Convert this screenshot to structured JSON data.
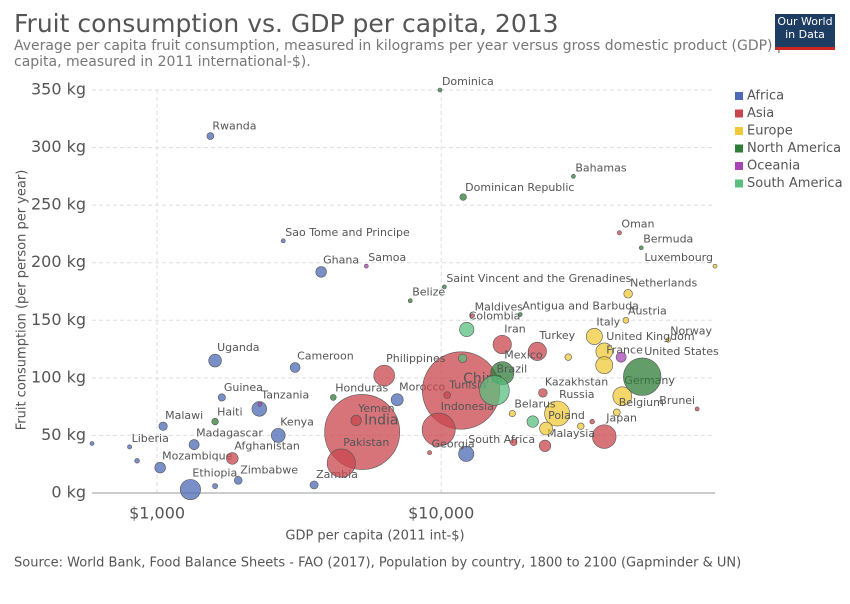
{
  "chart_data": {
    "type": "scatter",
    "title": "Fruit consumption vs. GDP per capita, 2013",
    "subtitle": "Average per capita fruit consumption, measured in kilograms per year versus gross domestic product (GDP) per capita, measured in 2011 international-$).",
    "logo": "Our World in Data",
    "x_label": "GDP per capita (2011 int-$)",
    "y_label": "Fruit consumption (per person per year)",
    "source": "Source: World Bank, Food Balance Sheets - FAO (2017), Population by country, 1800 to 2100 (Gapminder & UN)",
    "log_x": true,
    "grid": true,
    "legend": "right",
    "xlim": [
      590,
      92000
    ],
    "ylim": [
      0,
      350
    ],
    "xticks": [
      {
        "value": 1000,
        "label": "$1,000"
      },
      {
        "value": 10000,
        "label": "$10,000"
      }
    ],
    "yticks": [
      {
        "value": 0,
        "label": "0 kg"
      },
      {
        "value": 50,
        "label": "50 kg"
      },
      {
        "value": 100,
        "label": "100 kg"
      },
      {
        "value": 150,
        "label": "150 kg"
      },
      {
        "value": 200,
        "label": "200 kg"
      },
      {
        "value": 250,
        "label": "250 kg"
      },
      {
        "value": 300,
        "label": "300 kg"
      },
      {
        "value": 350,
        "label": "350 kg"
      }
    ],
    "series": [
      {
        "name": "Africa",
        "color": "#4c6ab5",
        "labels": [
          "Rwanda",
          "Sao Tome and Principe",
          "Ghana",
          "Uganda",
          "Cameroon",
          "Guinea",
          "Tanzania",
          "Malawi",
          "Kenya",
          "Madagascar",
          "Liberia",
          "Mozambique",
          "Zimbabwe",
          "Ethiopia",
          "Zambia",
          "Morocco",
          "South Africa",
          null,
          null,
          null
        ],
        "x": [
          1540,
          2780,
          3780,
          1600,
          3060,
          1690,
          2290,
          1050,
          2670,
          1350,
          800,
          1025,
          1930,
          1310,
          3570,
          7000,
          12250,
          590,
          850,
          1600
        ],
        "values": [
          310,
          219,
          192,
          115,
          109,
          83,
          73,
          58,
          50,
          42,
          40,
          22,
          11,
          3,
          7,
          81,
          34,
          43,
          28,
          6
        ],
        "sizes": [
          11,
          0.2,
          26,
          37,
          22,
          12,
          49,
          16,
          44,
          23,
          4,
          26,
          14,
          94,
          15,
          33,
          53,
          2,
          5,
          6
        ]
      },
      {
        "name": "Asia",
        "color": "#c8464e",
        "labels": [
          "Oman",
          "Maldives",
          "Iran",
          "Turkey",
          "Philippines",
          "China",
          "Tunisia",
          "Kazakhstan",
          "India",
          "Yemen",
          "Pakistan",
          "Afghanistan",
          "Indonesia",
          "Georgia",
          "Japan",
          "Malaysia",
          "Brunei",
          null,
          null
        ],
        "x": [
          42400,
          12900,
          16400,
          21800,
          6300,
          11750,
          10500,
          22800,
          5270,
          5020,
          4450,
          1840,
          9800,
          9100,
          37500,
          23200,
          79600,
          18000,
          34000
        ],
        "values": [
          226,
          154,
          129,
          123,
          102,
          89,
          85,
          87,
          53,
          63,
          26,
          30,
          55,
          35,
          49,
          41,
          73,
          44,
          62
        ],
        "sizes": [
          4,
          0.4,
          77,
          76,
          98,
          1360,
          11,
          17,
          1280,
          25,
          182,
          31,
          250,
          4,
          127,
          30,
          0.4,
          10,
          5
        ]
      },
      {
        "name": "Europe",
        "color": "#f0c93a",
        "labels": [
          "Luxembourg",
          "Netherlands",
          "Austria",
          "Norway",
          "Italy",
          "United Kingdom",
          "France",
          "Germany",
          "Belgium",
          "Russia",
          "Poland",
          "Belarus",
          null,
          null
        ],
        "x": [
          92000,
          45500,
          44700,
          63000,
          34600,
          37500,
          37500,
          43400,
          41500,
          25600,
          23400,
          17800,
          28000,
          31000
        ],
        "values": [
          197,
          173,
          150,
          133,
          136,
          123,
          111,
          84,
          70,
          69,
          56,
          69,
          118,
          58
        ],
        "sizes": [
          0.5,
          17,
          8,
          5,
          60,
          64,
          66,
          81,
          11,
          143,
          38,
          9,
          10,
          10
        ]
      },
      {
        "name": "North America",
        "color": "#2f7d38",
        "labels": [
          "Dominica",
          "Bahamas",
          "Dominican Republic",
          "Bermuda",
          "Saint Vincent and the Grenadines",
          "Antigua and Barbuda",
          "Belize",
          "Mexico",
          "Honduras",
          "United States",
          "Haiti"
        ],
        "x": [
          9900,
          29200,
          11950,
          50600,
          10260,
          18970,
          7780,
          16400,
          4170,
          51000,
          1600
        ],
        "values": [
          350,
          275,
          257,
          213,
          179,
          155,
          167,
          104,
          83,
          101,
          62
        ],
        "sizes": [
          0.1,
          0.4,
          10,
          0.1,
          0.1,
          0.1,
          0.3,
          122,
          8,
          320,
          10
        ]
      },
      {
        "name": "Oceania",
        "color": "#a845b5",
        "labels": [
          "Samoa",
          null,
          null
        ],
        "x": [
          5450,
          2300,
          43000
        ],
        "values": [
          197,
          77,
          118
        ],
        "sizes": [
          0.2,
          0.5,
          23
        ]
      },
      {
        "name": "South America",
        "color": "#5bbf7f",
        "labels": [
          "Colombia",
          "Brazil",
          null,
          null
        ],
        "x": [
          12300,
          15400,
          11900,
          21000
        ],
        "values": [
          142,
          89,
          117,
          62
        ],
        "sizes": [
          47,
          200,
          16,
          30
        ]
      }
    ]
  }
}
